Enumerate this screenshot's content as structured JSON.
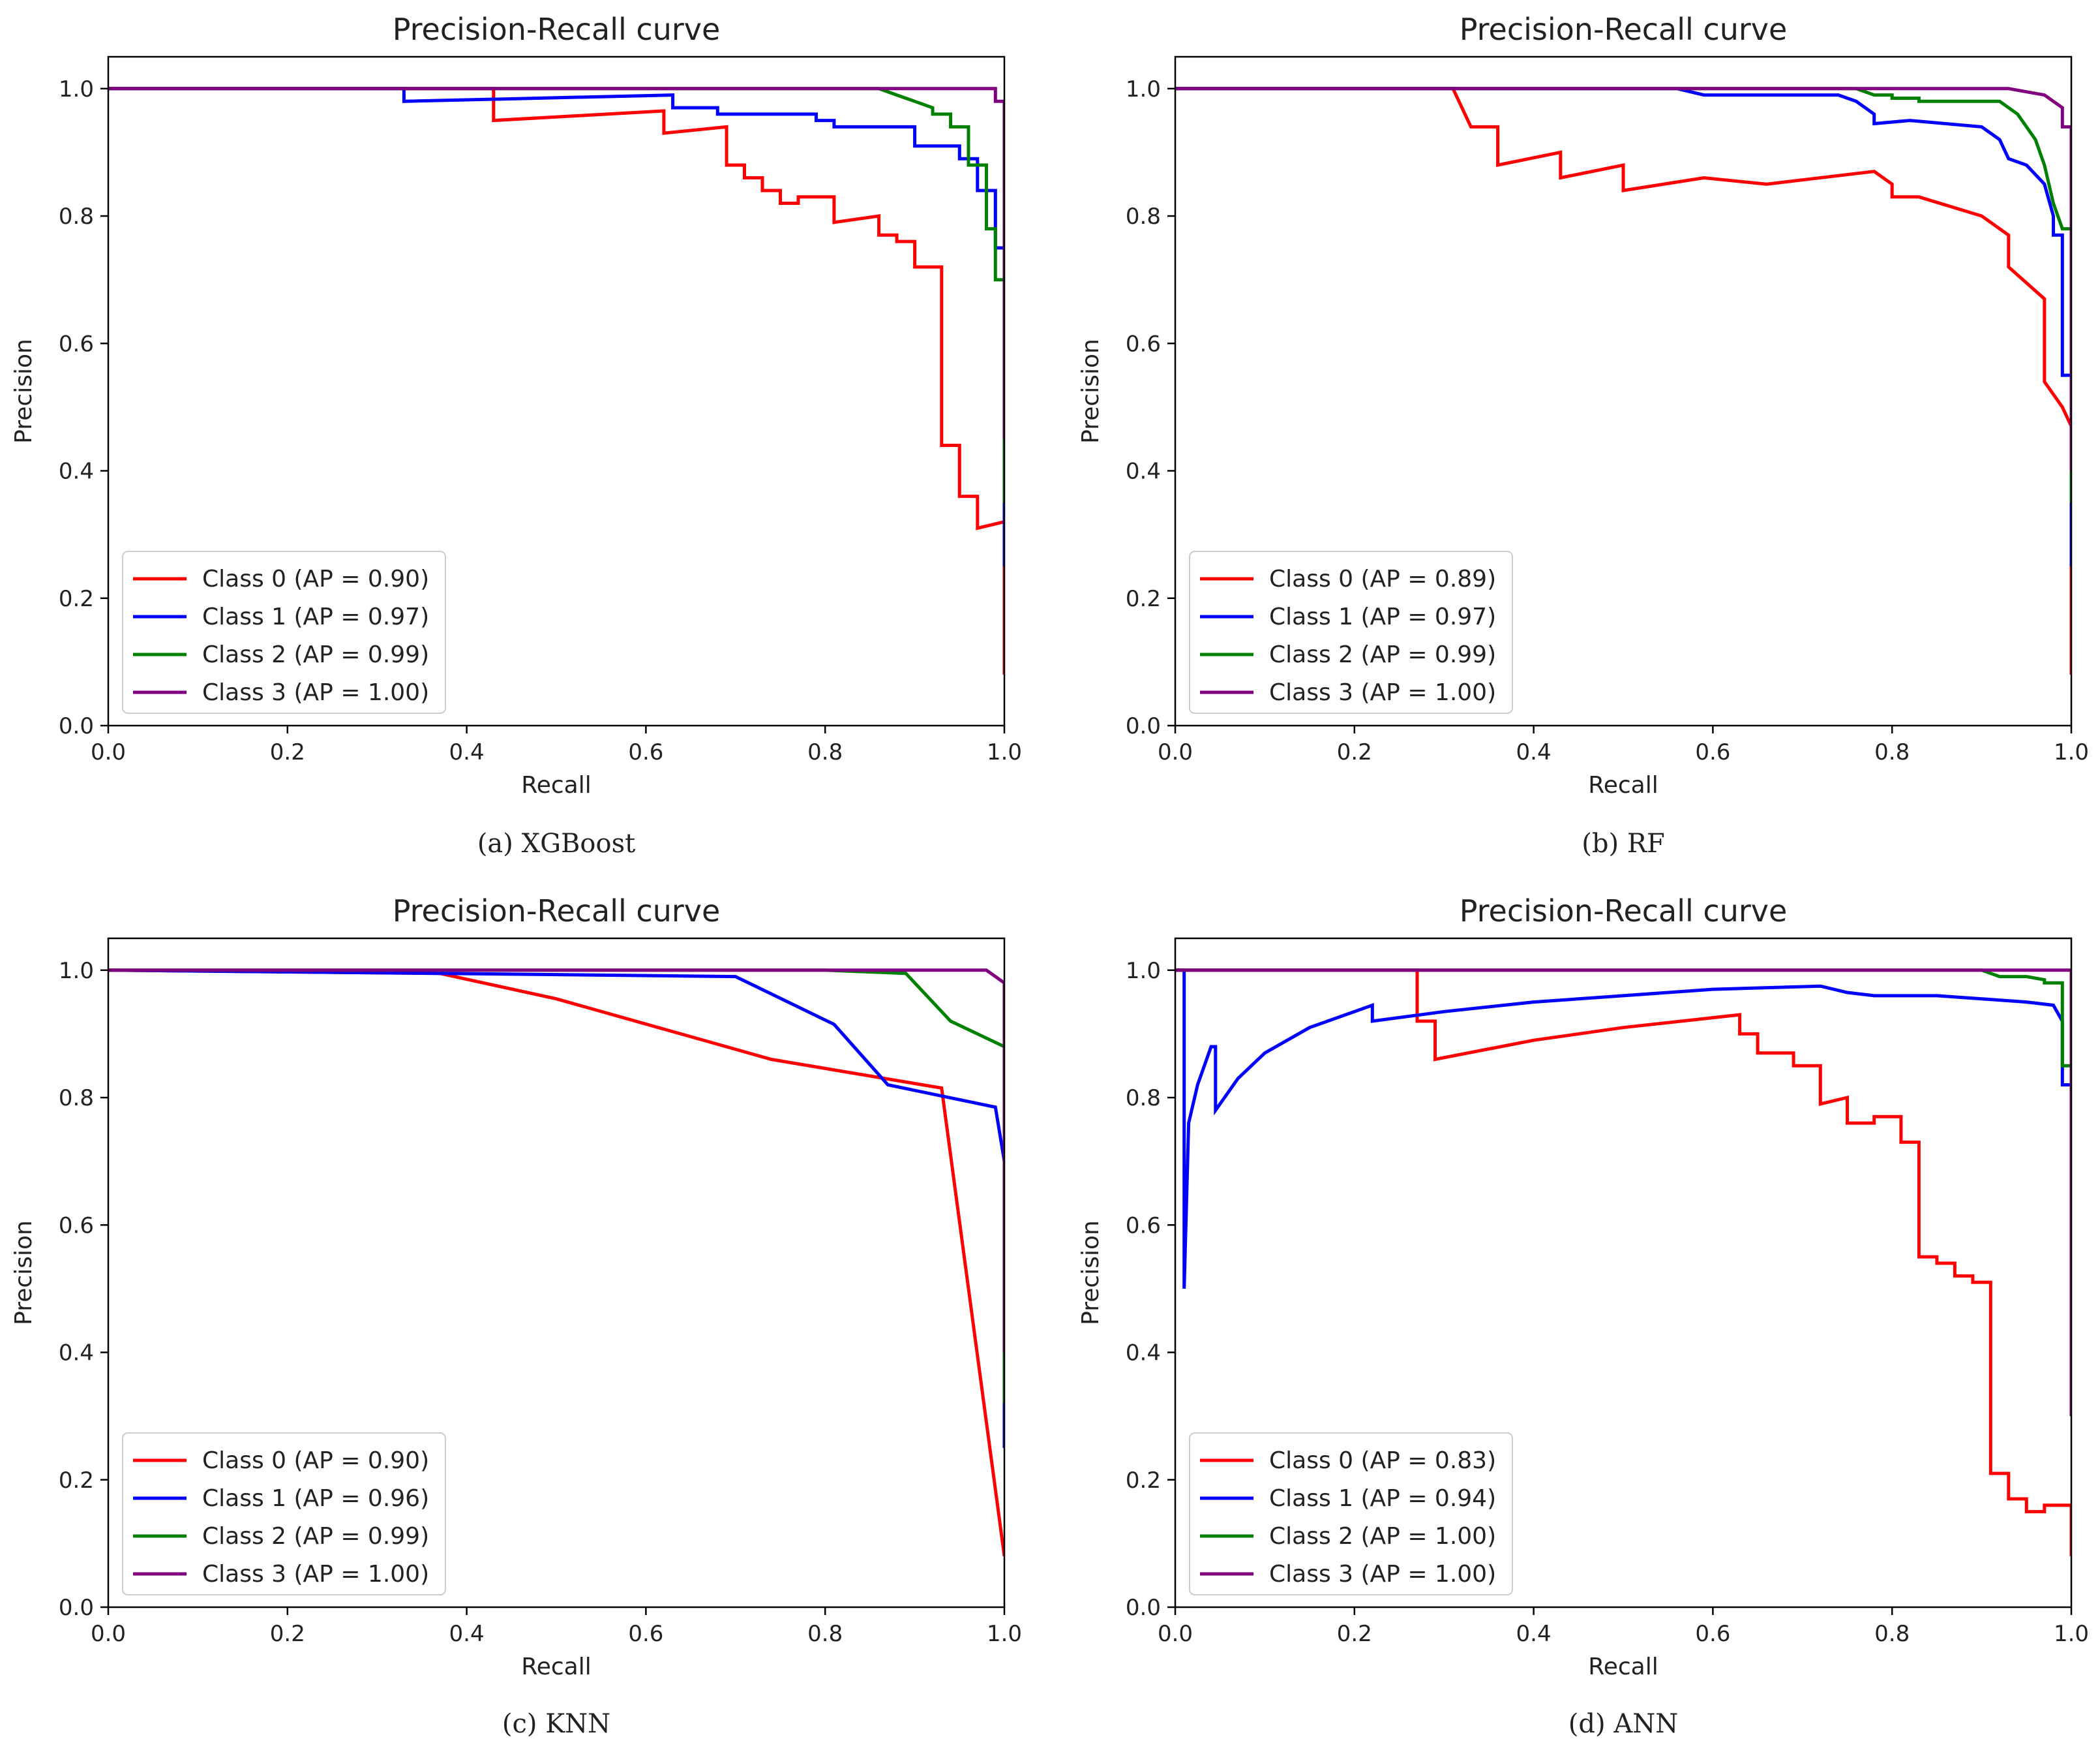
{
  "chart_data": [
    {
      "type": "line",
      "title": "Precision-Recall curve",
      "caption": "(a) XGBoost",
      "xlabel": "Recall",
      "ylabel": "Precision",
      "xlim": [
        0,
        1
      ],
      "ylim": [
        0,
        1.05
      ],
      "xticks": [
        "0.0",
        "0.2",
        "0.4",
        "0.6",
        "0.8",
        "1.0"
      ],
      "yticks": [
        "0.0",
        "0.2",
        "0.4",
        "0.6",
        "0.8",
        "1.0"
      ],
      "legend_position": "lower-left",
      "series": [
        {
          "name": "Class 0 (AP = 0.90)",
          "color": "#ff0000",
          "x": [
            0,
            0.43,
            0.43,
            0.62,
            0.62,
            0.69,
            0.69,
            0.71,
            0.71,
            0.73,
            0.73,
            0.75,
            0.75,
            0.77,
            0.77,
            0.81,
            0.81,
            0.86,
            0.86,
            0.88,
            0.88,
            0.9,
            0.9,
            0.93,
            0.93,
            0.95,
            0.95,
            0.97,
            0.97,
            1.0,
            1.0
          ],
          "y": [
            1.0,
            1.0,
            0.95,
            0.965,
            0.93,
            0.94,
            0.88,
            0.88,
            0.86,
            0.86,
            0.84,
            0.84,
            0.82,
            0.82,
            0.83,
            0.83,
            0.79,
            0.8,
            0.77,
            0.77,
            0.76,
            0.76,
            0.72,
            0.72,
            0.44,
            0.44,
            0.36,
            0.36,
            0.31,
            0.32,
            0.08
          ]
        },
        {
          "name": "Class 1 (AP = 0.97)",
          "color": "#0000ff",
          "x": [
            0,
            0.33,
            0.33,
            0.63,
            0.63,
            0.68,
            0.68,
            0.79,
            0.79,
            0.81,
            0.81,
            0.9,
            0.9,
            0.95,
            0.95,
            0.97,
            0.97,
            0.99,
            0.99,
            1.0,
            1.0
          ],
          "y": [
            1.0,
            1.0,
            0.98,
            0.99,
            0.97,
            0.97,
            0.96,
            0.96,
            0.95,
            0.95,
            0.94,
            0.94,
            0.91,
            0.91,
            0.89,
            0.89,
            0.84,
            0.84,
            0.75,
            0.75,
            0.25
          ]
        },
        {
          "name": "Class 2 (AP = 0.99)",
          "color": "#008000",
          "x": [
            0,
            0.86,
            0.88,
            0.9,
            0.92,
            0.92,
            0.94,
            0.94,
            0.96,
            0.96,
            0.98,
            0.98,
            0.99,
            0.99,
            1.0,
            1.0
          ],
          "y": [
            1.0,
            1.0,
            0.99,
            0.98,
            0.97,
            0.96,
            0.96,
            0.94,
            0.94,
            0.88,
            0.88,
            0.78,
            0.78,
            0.7,
            0.7,
            0.35
          ]
        },
        {
          "name": "Class 3 (AP = 1.00)",
          "color": "#800080",
          "x": [
            0,
            0.99,
            0.99,
            1.0,
            1.0
          ],
          "y": [
            1.0,
            1.0,
            0.98,
            0.98,
            0.45
          ]
        }
      ]
    },
    {
      "type": "line",
      "title": "Precision-Recall curve",
      "caption": "(b) RF",
      "xlabel": "Recall",
      "ylabel": "Precision",
      "xlim": [
        0,
        1
      ],
      "ylim": [
        0,
        1.05
      ],
      "xticks": [
        "0.0",
        "0.2",
        "0.4",
        "0.6",
        "0.8",
        "1.0"
      ],
      "yticks": [
        "0.0",
        "0.2",
        "0.4",
        "0.6",
        "0.8",
        "1.0"
      ],
      "legend_position": "lower-left",
      "series": [
        {
          "name": "Class 0 (AP = 0.89)",
          "color": "#ff0000",
          "x": [
            0,
            0.31,
            0.31,
            0.33,
            0.36,
            0.36,
            0.43,
            0.43,
            0.5,
            0.5,
            0.59,
            0.66,
            0.78,
            0.8,
            0.8,
            0.83,
            0.9,
            0.93,
            0.93,
            0.97,
            0.97,
            0.99,
            1.0,
            1.0
          ],
          "y": [
            1.0,
            1.0,
            1.0,
            0.94,
            0.94,
            0.88,
            0.9,
            0.86,
            0.88,
            0.84,
            0.86,
            0.85,
            0.87,
            0.85,
            0.83,
            0.83,
            0.8,
            0.77,
            0.72,
            0.67,
            0.54,
            0.5,
            0.47,
            0.08
          ]
        },
        {
          "name": "Class 1 (AP = 0.97)",
          "color": "#0000ff",
          "x": [
            0,
            0.56,
            0.59,
            0.74,
            0.76,
            0.78,
            0.78,
            0.82,
            0.9,
            0.92,
            0.93,
            0.95,
            0.97,
            0.98,
            0.98,
            0.99,
            0.99,
            1.0,
            1.0
          ],
          "y": [
            1.0,
            1.0,
            0.99,
            0.99,
            0.98,
            0.96,
            0.945,
            0.95,
            0.94,
            0.92,
            0.89,
            0.88,
            0.85,
            0.8,
            0.77,
            0.77,
            0.55,
            0.55,
            0.25
          ]
        },
        {
          "name": "Class 2 (AP = 0.99)",
          "color": "#008000",
          "x": [
            0,
            0.76,
            0.78,
            0.8,
            0.8,
            0.83,
            0.83,
            0.92,
            0.94,
            0.96,
            0.97,
            0.98,
            0.99,
            1.0,
            1.0
          ],
          "y": [
            1.0,
            1.0,
            0.99,
            0.99,
            0.985,
            0.985,
            0.98,
            0.98,
            0.96,
            0.92,
            0.88,
            0.82,
            0.78,
            0.78,
            0.35
          ]
        },
        {
          "name": "Class 3 (AP = 1.00)",
          "color": "#800080",
          "x": [
            0,
            0.93,
            0.95,
            0.97,
            0.98,
            0.99,
            0.99,
            1.0,
            1.0
          ],
          "y": [
            1.0,
            1.0,
            0.995,
            0.99,
            0.98,
            0.97,
            0.94,
            0.94,
            0.4
          ]
        }
      ]
    },
    {
      "type": "line",
      "title": "Precision-Recall curve",
      "caption": "(c) KNN",
      "xlabel": "Recall",
      "ylabel": "Precision",
      "xlim": [
        0,
        1
      ],
      "ylim": [
        0,
        1.05
      ],
      "xticks": [
        "0.0",
        "0.2",
        "0.4",
        "0.6",
        "0.8",
        "1.0"
      ],
      "yticks": [
        "0.0",
        "0.2",
        "0.4",
        "0.6",
        "0.8",
        "1.0"
      ],
      "legend_position": "lower-left",
      "series": [
        {
          "name": "Class 0 (AP = 0.90)",
          "color": "#ff0000",
          "x": [
            0,
            0.37,
            0.5,
            0.74,
            0.93,
            1.0
          ],
          "y": [
            1.0,
            0.995,
            0.955,
            0.86,
            0.815,
            0.08
          ]
        },
        {
          "name": "Class 1 (AP = 0.96)",
          "color": "#0000ff",
          "x": [
            0,
            0.37,
            0.7,
            0.81,
            0.87,
            0.99,
            1.0,
            1.0
          ],
          "y": [
            1.0,
            0.995,
            0.99,
            0.915,
            0.82,
            0.785,
            0.7,
            0.25
          ]
        },
        {
          "name": "Class 2 (AP = 0.99)",
          "color": "#008000",
          "x": [
            0,
            0.8,
            0.89,
            0.94,
            1.0,
            1.0
          ],
          "y": [
            1.0,
            1.0,
            0.995,
            0.92,
            0.88,
            0.32
          ]
        },
        {
          "name": "Class 3 (AP = 1.00)",
          "color": "#800080",
          "x": [
            0,
            0.98,
            1.0,
            1.0
          ],
          "y": [
            1.0,
            1.0,
            0.98,
            0.4
          ]
        }
      ]
    },
    {
      "type": "line",
      "title": "Precision-Recall curve",
      "caption": "(d) ANN",
      "xlabel": "Recall",
      "ylabel": "Precision",
      "xlim": [
        0,
        1
      ],
      "ylim": [
        0,
        1.05
      ],
      "xticks": [
        "0.0",
        "0.2",
        "0.4",
        "0.6",
        "0.8",
        "1.0"
      ],
      "yticks": [
        "0.0",
        "0.2",
        "0.4",
        "0.6",
        "0.8",
        "1.0"
      ],
      "legend_position": "lower-left",
      "series": [
        {
          "name": "Class 0 (AP = 0.83)",
          "color": "#ff0000",
          "x": [
            0,
            0.27,
            0.27,
            0.29,
            0.29,
            0.4,
            0.5,
            0.63,
            0.63,
            0.65,
            0.65,
            0.69,
            0.69,
            0.72,
            0.72,
            0.75,
            0.75,
            0.78,
            0.78,
            0.81,
            0.81,
            0.83,
            0.83,
            0.85,
            0.85,
            0.87,
            0.87,
            0.89,
            0.89,
            0.91,
            0.91,
            0.93,
            0.93,
            0.95,
            0.95,
            0.97,
            0.97,
            1.0,
            1.0
          ],
          "y": [
            1.0,
            1.0,
            0.92,
            0.92,
            0.86,
            0.89,
            0.91,
            0.93,
            0.9,
            0.9,
            0.87,
            0.87,
            0.85,
            0.85,
            0.79,
            0.8,
            0.76,
            0.76,
            0.77,
            0.77,
            0.73,
            0.73,
            0.55,
            0.55,
            0.54,
            0.54,
            0.52,
            0.52,
            0.51,
            0.51,
            0.21,
            0.21,
            0.17,
            0.17,
            0.15,
            0.15,
            0.16,
            0.16,
            0.08
          ]
        },
        {
          "name": "Class 1 (AP = 0.94)",
          "color": "#0000ff",
          "x": [
            0,
            0.01,
            0.01,
            0.015,
            0.025,
            0.04,
            0.045,
            0.045,
            0.07,
            0.1,
            0.15,
            0.22,
            0.22,
            0.3,
            0.4,
            0.5,
            0.6,
            0.72,
            0.75,
            0.78,
            0.85,
            0.9,
            0.95,
            0.98,
            0.99,
            0.99,
            1.0,
            1.0
          ],
          "y": [
            1.0,
            1.0,
            0.5,
            0.76,
            0.82,
            0.88,
            0.88,
            0.78,
            0.83,
            0.87,
            0.91,
            0.945,
            0.92,
            0.935,
            0.95,
            0.96,
            0.97,
            0.975,
            0.965,
            0.96,
            0.96,
            0.955,
            0.95,
            0.945,
            0.92,
            0.82,
            0.82,
            0.3
          ]
        },
        {
          "name": "Class 2 (AP = 1.00)",
          "color": "#008000",
          "x": [
            0,
            0.9,
            0.92,
            0.95,
            0.97,
            0.97,
            0.99,
            0.99,
            1.0,
            1.0
          ],
          "y": [
            1.0,
            1.0,
            0.99,
            0.99,
            0.985,
            0.98,
            0.98,
            0.85,
            0.85,
            0.3
          ]
        },
        {
          "name": "Class 3 (AP = 1.00)",
          "color": "#800080",
          "x": [
            0,
            1.0,
            1.0
          ],
          "y": [
            1.0,
            1.0,
            0.3
          ]
        }
      ]
    }
  ]
}
